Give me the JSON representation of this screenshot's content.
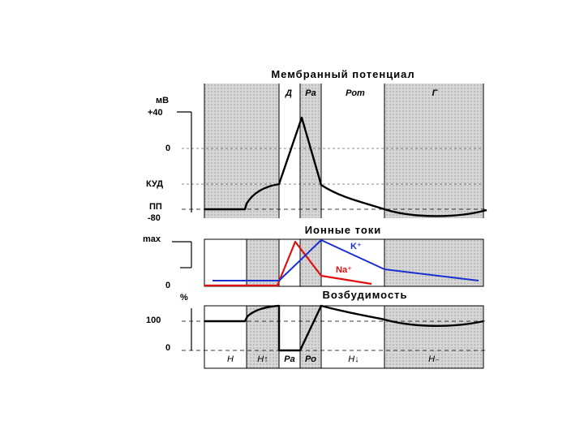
{
  "membrane": {
    "title": "Мембранный потенциал",
    "unit": "мВ",
    "ticks": [
      "+40",
      "0",
      "КУД",
      "ПП",
      "-80"
    ],
    "phases": [
      "Д",
      "Ра",
      "Рот",
      "Г"
    ]
  },
  "ionic": {
    "title": "Ионные токи",
    "ymax": "max",
    "yzero": "0",
    "k_label": "K⁺",
    "na_label": "Na⁺"
  },
  "excitability": {
    "title": "Возбудимость",
    "unit": "%",
    "ticks": [
      "100",
      "0"
    ],
    "phases": [
      "Н",
      "Н↑",
      "Ра",
      "Ро",
      "Н↓",
      "Н₋"
    ]
  },
  "colors": {
    "shading": "#cfcfcf",
    "potassium": "#1a2fd0",
    "sodium": "#e01010",
    "trace": "#000000"
  }
}
